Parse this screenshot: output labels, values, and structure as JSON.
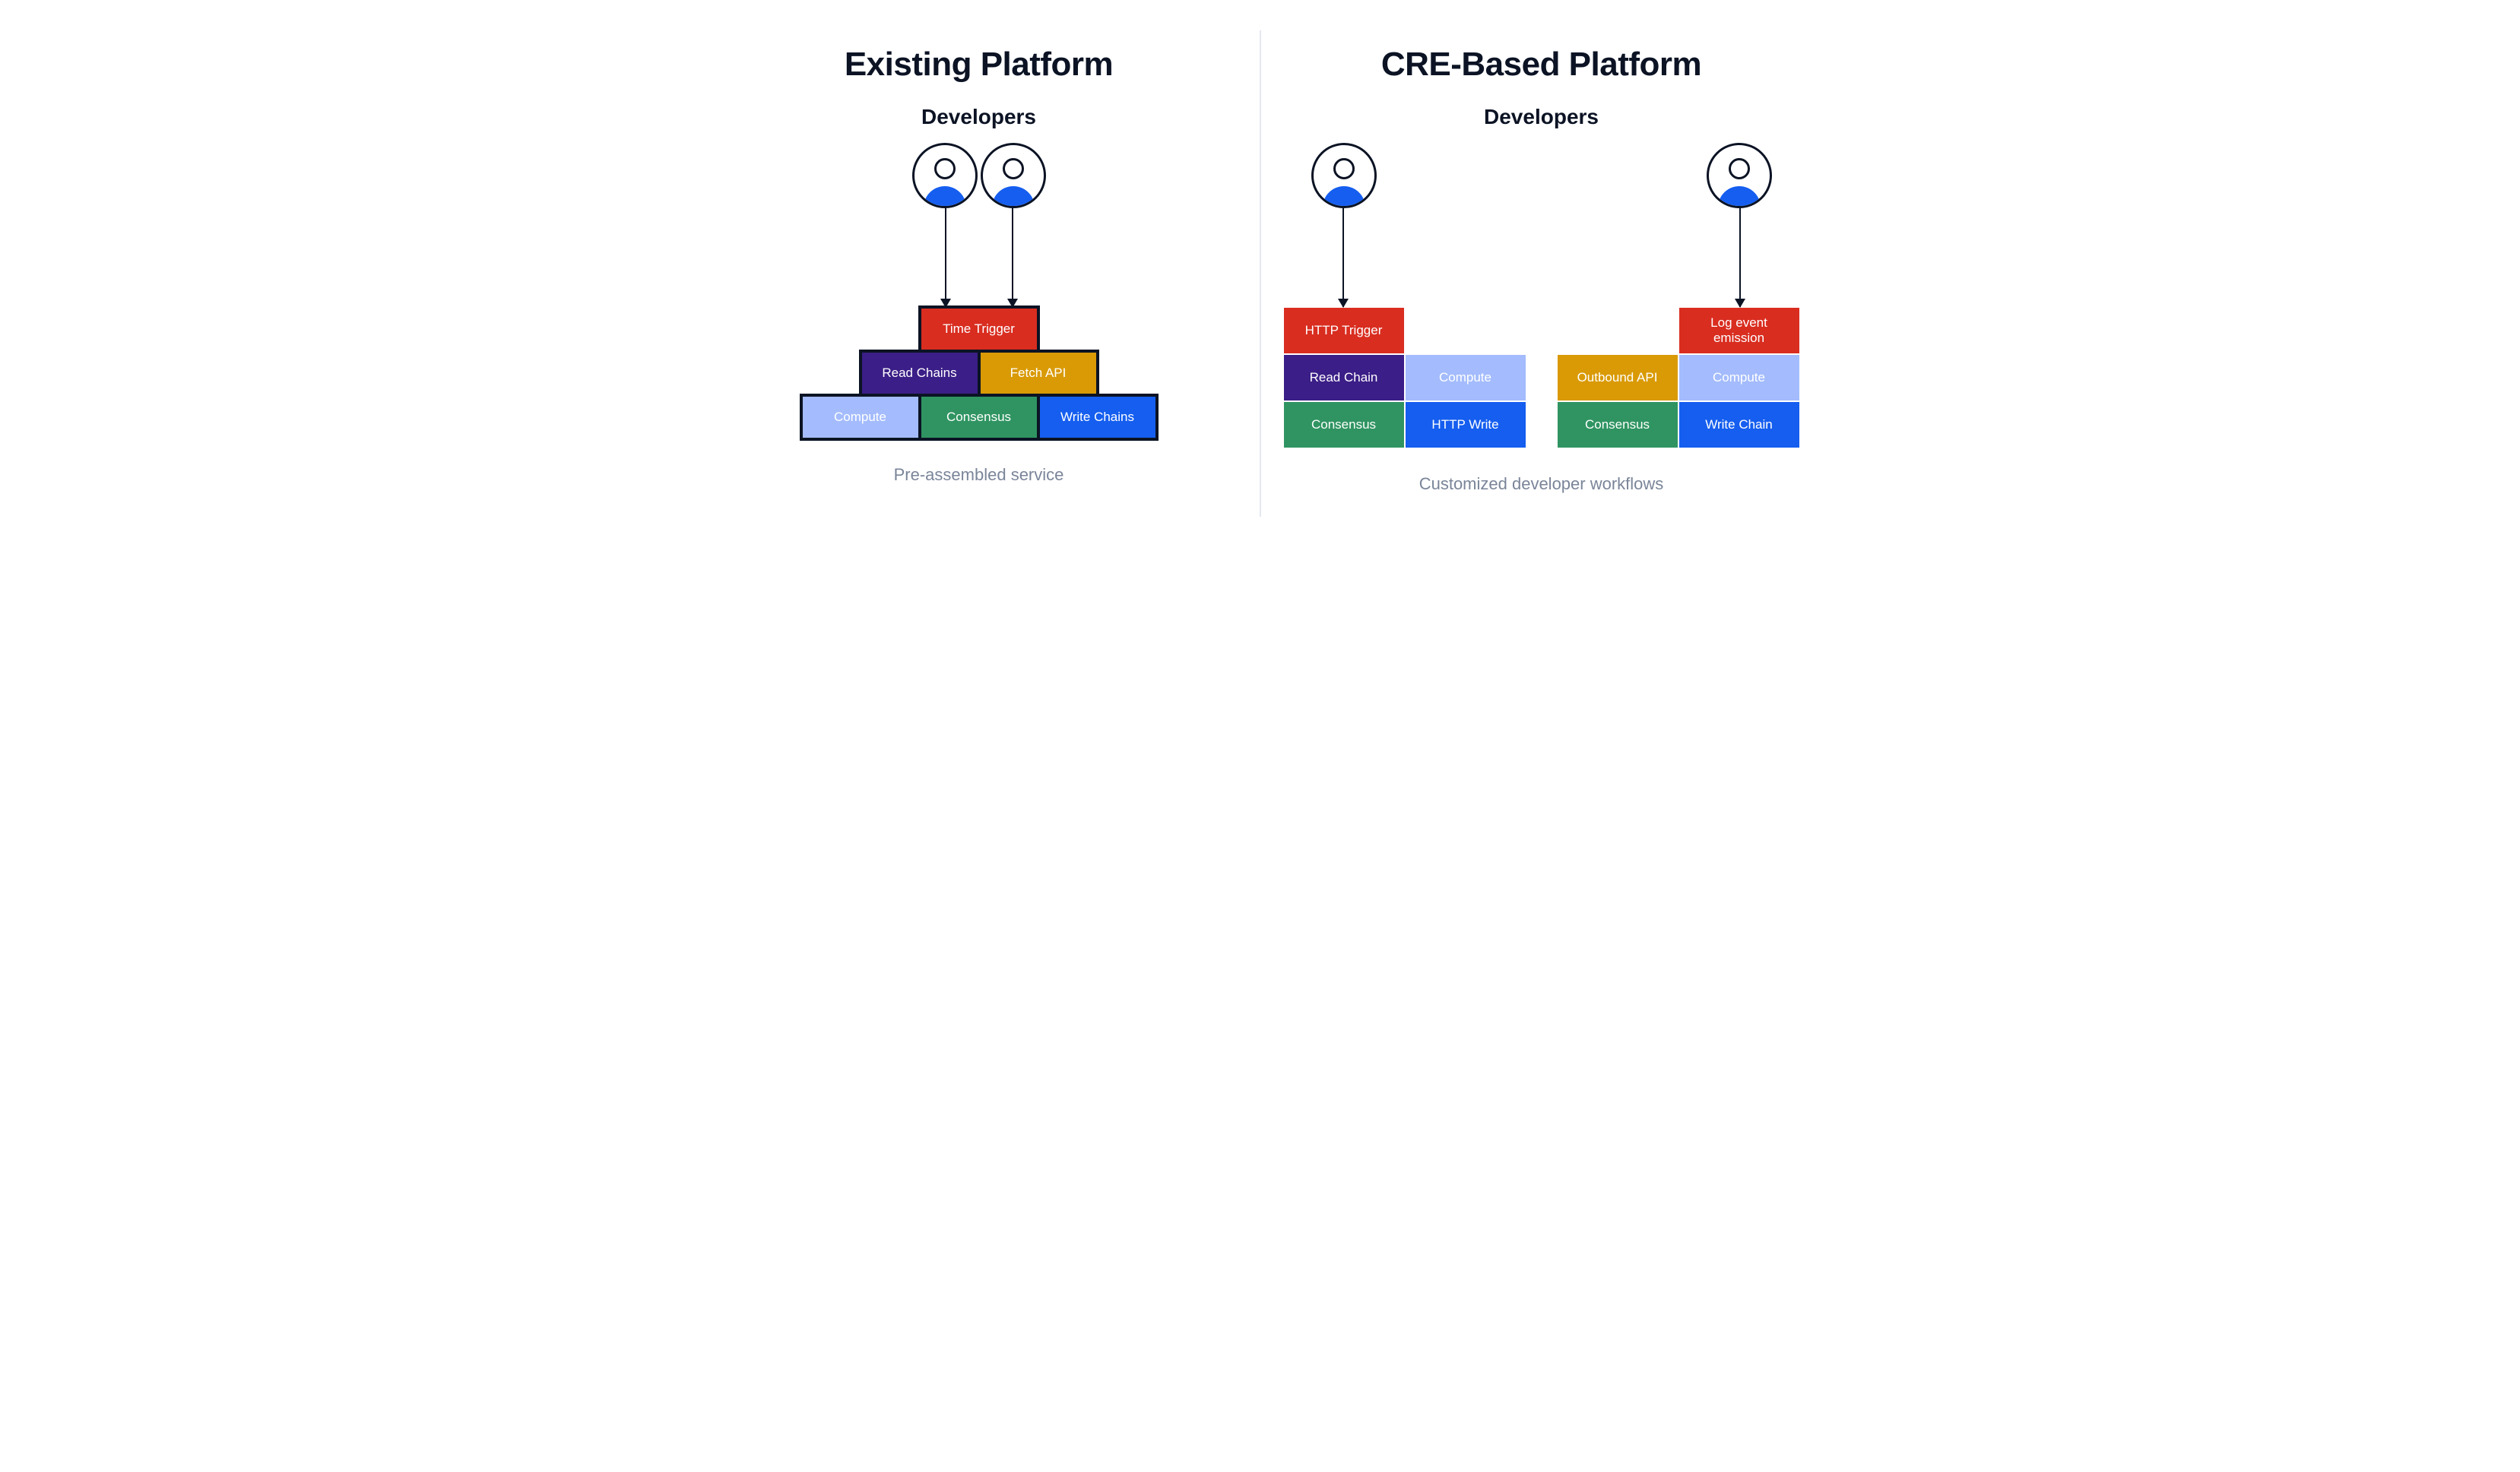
{
  "colors": {
    "title": "#0b1324",
    "caption": "#7a8599",
    "divider": "#c9d1e0",
    "avatar_fill": "#155eef",
    "red": "#d92d20",
    "purple": "#3b1e87",
    "gold": "#d99a06",
    "lightblue": "#a4bcfd",
    "green": "#2f9461",
    "blue": "#155eef"
  },
  "typography": {
    "title_fontsize": 44,
    "subtitle_fontsize": 28,
    "block_fontsize": 17,
    "caption_fontsize": 22,
    "title_weight": 700,
    "block_weight": 500
  },
  "layout": {
    "block_height": 62,
    "avatar_diameter": 86,
    "arrow_height": 130,
    "left_border_width": 4
  },
  "left": {
    "title": "Existing Platform",
    "subtitle": "Developers",
    "avatar_count": 2,
    "caption": "Pre-assembled service",
    "rows": [
      [
        {
          "label": "Time Trigger",
          "color": "red",
          "w": 160
        }
      ],
      [
        {
          "label": "Read Chains",
          "color": "purple",
          "w": 160
        },
        {
          "label": "Fetch API",
          "color": "gold",
          "w": 160
        }
      ],
      [
        {
          "label": "Compute",
          "color": "lightblue",
          "w": 160
        },
        {
          "label": "Consensus",
          "color": "green",
          "w": 160
        },
        {
          "label": "Write Chains",
          "color": "blue",
          "w": 160
        }
      ]
    ]
  },
  "right": {
    "title": "CRE-Based Platform",
    "subtitle": "Developers",
    "caption": "Customized developer workflows",
    "stacks": [
      {
        "top_align": "left",
        "rows": [
          [
            {
              "label": "HTTP Trigger",
              "color": "red",
              "w": 160
            }
          ],
          [
            {
              "label": "Read Chain",
              "color": "purple",
              "w": 160
            },
            {
              "label": "Compute",
              "color": "lightblue",
              "w": 160
            }
          ],
          [
            {
              "label": "Consensus",
              "color": "green",
              "w": 160
            },
            {
              "label": "HTTP Write",
              "color": "blue",
              "w": 160
            }
          ]
        ]
      },
      {
        "top_align": "right",
        "rows": [
          [
            {
              "label": "Log event emission",
              "color": "red",
              "w": 160
            }
          ],
          [
            {
              "label": "Outbound API",
              "color": "gold",
              "w": 160
            },
            {
              "label": "Compute",
              "color": "lightblue",
              "w": 160
            }
          ],
          [
            {
              "label": "Consensus",
              "color": "green",
              "w": 160
            },
            {
              "label": "Write Chain",
              "color": "blue",
              "w": 160
            }
          ]
        ]
      }
    ]
  }
}
